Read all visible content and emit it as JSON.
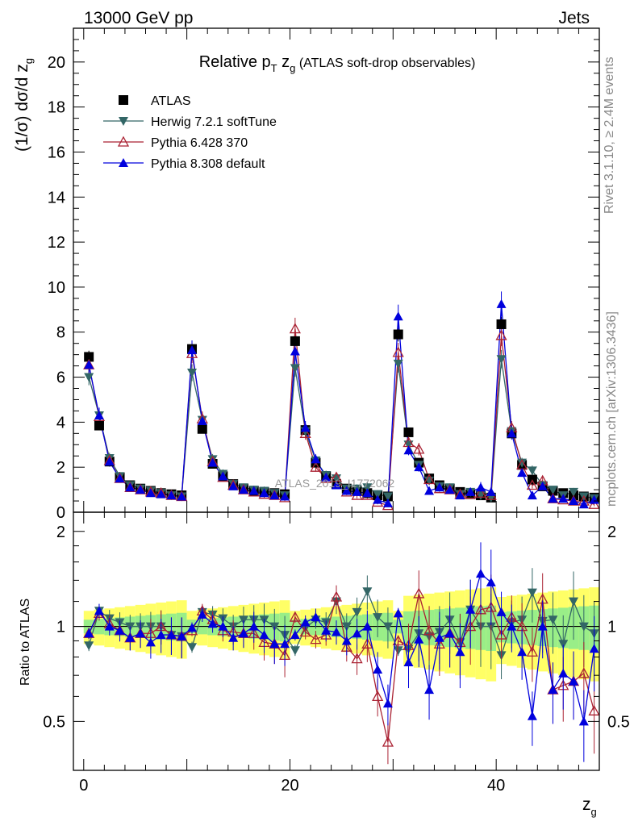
{
  "header": {
    "left": "13000 GeV pp",
    "right": "Jets"
  },
  "side": {
    "rivet": "Rivet 3.1.10, ≥ 2.4M events",
    "mcplots": "mcplots.cern.ch [arXiv:1306.3436]"
  },
  "watermark": "ATLAS_2019_I1772062",
  "chart_data": {
    "type": "scatter",
    "title": {
      "main": "Relative p",
      "sub": "T",
      "mid": " z",
      "sub2": "g",
      "rest": " (ATLAS soft-drop observables)"
    },
    "ylabel": {
      "pre": "(1/σ) dσ/d z",
      "sub": "g"
    },
    "xlabel": {
      "main": "z",
      "sub": "g"
    },
    "ratio_ylabel": "Ratio to ATLAS",
    "xlim": [
      -1,
      50
    ],
    "ylim": [
      0,
      21.5
    ],
    "ratio_ylim": [
      0.35,
      2.3
    ],
    "xticks": [
      "0",
      "20",
      "40"
    ],
    "yticks": [
      "0",
      "2",
      "4",
      "6",
      "8",
      "10",
      "12",
      "14",
      "16",
      "18",
      "20"
    ],
    "ratio_yticks": [
      "0.5",
      "1",
      "2"
    ],
    "legend_position": "top-left",
    "x": [
      0.5,
      1.5,
      2.5,
      3.5,
      4.5,
      5.5,
      6.5,
      7.5,
      8.5,
      9.5,
      10.5,
      11.5,
      12.5,
      13.5,
      14.5,
      15.5,
      16.5,
      17.5,
      18.5,
      19.5,
      20.5,
      21.5,
      22.5,
      23.5,
      24.5,
      25.5,
      26.5,
      27.5,
      28.5,
      29.5,
      30.5,
      31.5,
      32.5,
      33.5,
      34.5,
      35.5,
      36.5,
      37.5,
      38.5,
      39.5,
      40.5,
      41.5,
      42.5,
      43.5,
      44.5,
      45.5,
      46.5,
      47.5,
      48.5,
      49.5
    ],
    "series": [
      {
        "name": "ATLAS",
        "color": "#000000",
        "marker": "square",
        "values": [
          6.9,
          3.85,
          2.25,
          1.55,
          1.2,
          1.05,
          0.95,
          0.85,
          0.8,
          0.75,
          7.25,
          3.7,
          2.15,
          1.6,
          1.25,
          1.05,
          0.95,
          0.9,
          0.85,
          0.8,
          7.6,
          3.65,
          2.2,
          1.6,
          1.25,
          1.05,
          0.95,
          0.85,
          0.75,
          0.7,
          7.9,
          3.55,
          2.2,
          1.5,
          1.2,
          1.05,
          0.9,
          0.8,
          0.75,
          0.65,
          8.35,
          3.5,
          2.1,
          1.45,
          1.15,
          0.95,
          0.85,
          0.75,
          0.7,
          0.65
        ]
      },
      {
        "name": "Herwig 7.2.1 softTune",
        "color": "#336666",
        "marker": "triangle-down",
        "values": [
          6.0,
          4.3,
          2.4,
          1.6,
          1.2,
          1.05,
          0.95,
          0.85,
          0.75,
          0.7,
          6.2,
          4.1,
          2.35,
          1.7,
          1.25,
          1.1,
          1.0,
          0.95,
          0.85,
          0.75,
          6.4,
          3.6,
          2.3,
          1.65,
          1.5,
          1.05,
          1.05,
          1.1,
          0.8,
          0.7,
          6.6,
          3.0,
          2.1,
          1.4,
          1.15,
          1.1,
          0.8,
          0.9,
          0.75,
          0.65,
          6.8,
          3.6,
          2.2,
          1.85,
          1.2,
          1.0,
          0.75,
          0.9,
          0.7,
          0.62
        ]
      },
      {
        "name": "Pythia 6.428 370",
        "color": "#aa2233",
        "marker": "triangle-up-open",
        "values": [
          6.55,
          4.25,
          2.3,
          1.5,
          1.1,
          1.0,
          0.9,
          0.85,
          0.75,
          0.7,
          7.05,
          4.15,
          2.25,
          1.55,
          1.2,
          1.0,
          0.9,
          0.8,
          0.75,
          0.65,
          8.15,
          3.5,
          2.0,
          1.5,
          1.55,
          0.9,
          0.75,
          0.75,
          0.45,
          0.3,
          7.1,
          3.1,
          2.8,
          1.45,
          1.05,
          1.0,
          0.8,
          0.8,
          0.85,
          0.75,
          7.85,
          3.75,
          2.1,
          1.2,
          1.4,
          0.6,
          0.55,
          0.5,
          0.5,
          0.35
        ]
      },
      {
        "name": "Pythia 8.308 default",
        "color": "#0000dd",
        "marker": "triangle-up",
        "values": [
          6.55,
          4.3,
          2.25,
          1.5,
          1.1,
          1.0,
          0.85,
          0.8,
          0.75,
          0.7,
          7.2,
          4.05,
          2.2,
          1.6,
          1.15,
          1.0,
          0.95,
          0.85,
          0.75,
          0.7,
          7.15,
          3.75,
          2.35,
          1.55,
          1.2,
          0.95,
          0.9,
          0.85,
          0.55,
          0.4,
          8.7,
          2.75,
          2.0,
          0.95,
          1.1,
          1.0,
          0.75,
          0.9,
          1.1,
          0.9,
          9.25,
          3.5,
          1.75,
          0.75,
          1.15,
          0.6,
          0.6,
          0.5,
          0.35,
          0.55
        ]
      }
    ],
    "ratio_series": [
      {
        "name": "Herwig 7.2.1 softTune",
        "values": [
          0.87,
          1.12,
          1.06,
          1.03,
          1.0,
          1.0,
          1.0,
          1.0,
          0.94,
          0.93,
          0.86,
          1.11,
          1.09,
          1.06,
          1.0,
          1.05,
          1.05,
          1.05,
          1.0,
          0.94,
          0.84,
          0.99,
          1.05,
          1.03,
          1.2,
          1.0,
          1.11,
          1.29,
          1.07,
          1.0,
          0.84,
          0.85,
          0.95,
          0.93,
          0.96,
          1.05,
          0.89,
          1.13,
          1.0,
          1.0,
          0.81,
          1.03,
          1.05,
          1.28,
          1.04,
          1.05,
          0.88,
          1.2,
          1.0,
          0.95
        ]
      },
      {
        "name": "Pythia 6.428 370",
        "values": [
          0.95,
          1.1,
          1.02,
          0.97,
          0.92,
          0.95,
          0.95,
          1.0,
          0.94,
          0.93,
          0.97,
          1.12,
          1.05,
          0.97,
          0.96,
          0.95,
          0.95,
          0.89,
          0.88,
          0.81,
          1.07,
          0.96,
          0.91,
          0.94,
          1.24,
          0.86,
          0.79,
          0.88,
          0.6,
          0.43,
          0.9,
          0.87,
          1.27,
          0.97,
          0.88,
          0.95,
          0.89,
          1.0,
          1.13,
          1.15,
          0.94,
          1.07,
          1.0,
          0.83,
          1.22,
          0.63,
          0.65,
          0.67,
          0.71,
          0.54
        ]
      },
      {
        "name": "Pythia 8.308 default",
        "values": [
          0.95,
          1.12,
          1.0,
          0.97,
          0.92,
          0.95,
          0.89,
          0.94,
          0.94,
          0.93,
          0.99,
          1.09,
          1.02,
          1.0,
          0.92,
          0.95,
          1.0,
          0.94,
          0.88,
          0.88,
          0.94,
          1.03,
          1.07,
          0.97,
          0.96,
          0.9,
          0.95,
          1.0,
          0.73,
          0.57,
          1.1,
          0.77,
          0.91,
          0.63,
          0.92,
          0.95,
          0.83,
          1.13,
          1.47,
          1.38,
          1.11,
          1.0,
          0.83,
          0.52,
          1.0,
          0.63,
          0.71,
          0.67,
          0.5,
          0.85
        ]
      }
    ]
  }
}
